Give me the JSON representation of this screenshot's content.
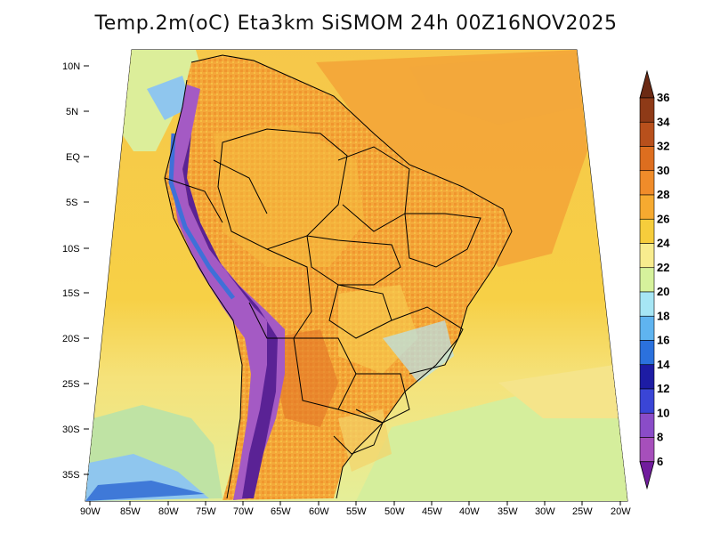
{
  "map": {
    "title": "Temp.2m(oC) Eta3km SiSMOM 24h 00Z16NOV2025",
    "variable": "Temp.2m",
    "units": "oC",
    "lat_labels": [
      "10N",
      "5N",
      "EQ",
      "5S",
      "10S",
      "15S",
      "20S",
      "25S",
      "30S",
      "35S"
    ],
    "lon_labels": [
      "90W",
      "85W",
      "80W",
      "75W",
      "70W",
      "65W",
      "60W",
      "55W",
      "50W",
      "45W",
      "40W",
      "35W",
      "30W",
      "25W",
      "20W"
    ]
  },
  "colorbar": {
    "labels": [
      "36",
      "34",
      "32",
      "30",
      "28",
      "26",
      "24",
      "22",
      "20",
      "18",
      "16",
      "14",
      "12",
      "10",
      "8",
      "6"
    ],
    "colors": [
      "#6b2a14",
      "#8e3a17",
      "#b8501c",
      "#dd6e1f",
      "#f08c2a",
      "#f6aa30",
      "#f6cd3c",
      "#f8ec8e",
      "#d6f29c",
      "#a6e6f5",
      "#5fb4f0",
      "#2b71dd",
      "#1d1ca4",
      "#3a45d6",
      "#8a4cc8",
      "#a64fbb",
      "#711c9d"
    ]
  }
}
